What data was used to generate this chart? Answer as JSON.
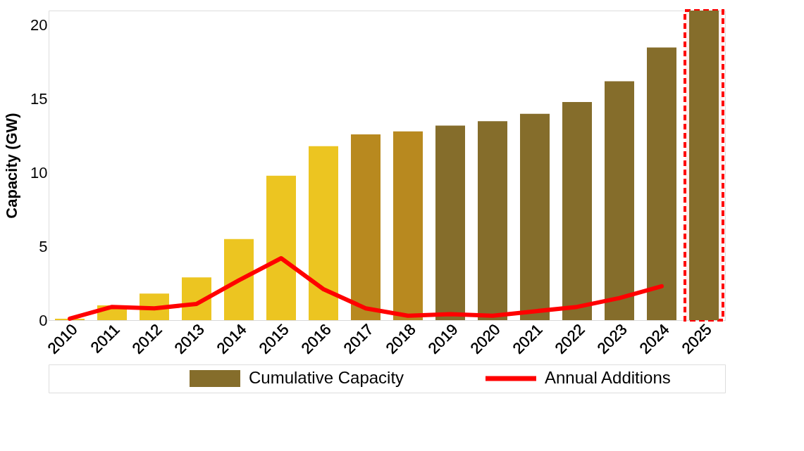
{
  "chart_data": {
    "type": "bar",
    "ylabel": "Capacity (GW)",
    "categories": [
      "2010",
      "2011",
      "2012",
      "2013",
      "2014",
      "2015",
      "2016",
      "2017",
      "2018",
      "2019",
      "2020",
      "2021",
      "2022",
      "2023",
      "2024",
      "2025"
    ],
    "series": [
      {
        "name": "Cumulative Capacity",
        "color": "#856d2b",
        "colors": [
          "#ecc521",
          "#ecc521",
          "#ecc521",
          "#ecc521",
          "#ecc521",
          "#ecc521",
          "#ecc521",
          "#b8891f",
          "#b8891f",
          "#856d2b",
          "#856d2b",
          "#856d2b",
          "#856d2b",
          "#856d2b",
          "#856d2b",
          "#856d2b"
        ],
        "values": [
          0.1,
          1.0,
          1.8,
          2.9,
          5.5,
          9.8,
          11.8,
          12.6,
          12.8,
          13.2,
          13.5,
          14.0,
          14.8,
          16.2,
          18.5,
          21.0
        ]
      },
      {
        "name": "Annual Additions",
        "type": "line",
        "color": "#ff0000",
        "values": [
          0.1,
          0.9,
          0.8,
          1.1,
          2.7,
          4.2,
          2.1,
          0.8,
          0.3,
          0.4,
          0.3,
          0.6,
          0.9,
          1.5,
          2.3,
          null
        ]
      }
    ],
    "ylim": [
      0,
      21
    ],
    "yticks": [
      0,
      5,
      10,
      15,
      20
    ],
    "grid": false,
    "legend": "bottom",
    "marker": "none",
    "line_style": "solid",
    "bands": [
      {
        "axis": "x",
        "from": "2025",
        "to": "2025",
        "color": "#ff0000"
      }
    ]
  }
}
